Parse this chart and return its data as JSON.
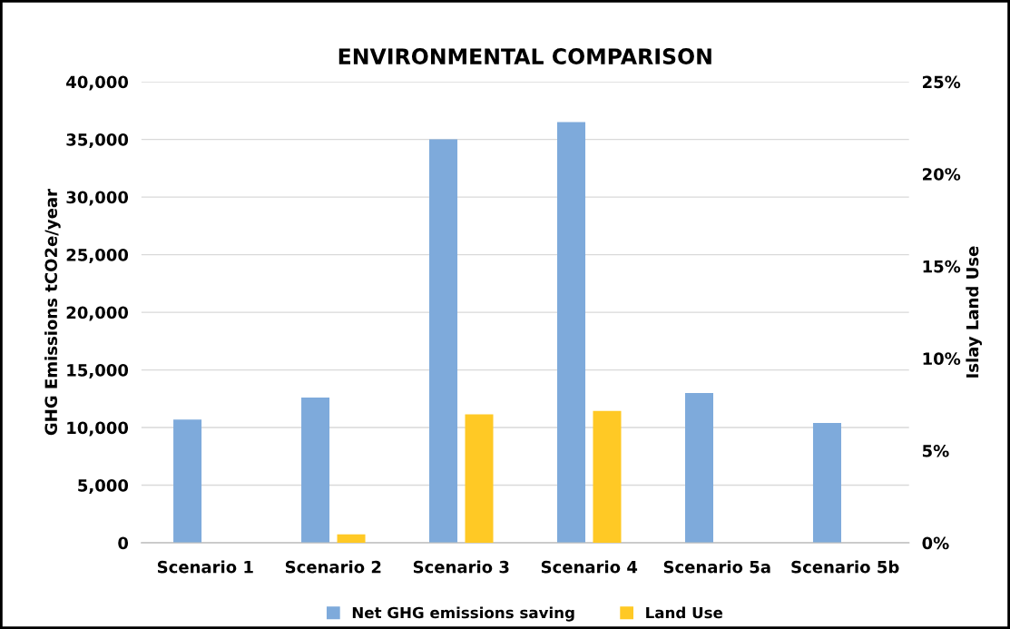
{
  "chart_data": {
    "type": "bar",
    "title": "ENVIRONMENTAL COMPARISON",
    "ylabel": "GHG Emissions tCO2e/year",
    "y2label": "Islay Land Use",
    "categories": [
      "Scenario 1",
      "Scenario 2",
      "Scenario 3",
      "Scenario 4",
      "Scenario 5a",
      "Scenario 5b"
    ],
    "series": [
      {
        "name": "Net GHG emissions saving",
        "color": "#7eaadb",
        "values": [
          10700,
          12600,
          35000,
          36500,
          13000,
          10400
        ]
      },
      {
        "name": "Land Use",
        "color": "#ffc925",
        "axis": "y2",
        "values": [
          0,
          0.46,
          6.97,
          7.15,
          0,
          0
        ]
      }
    ],
    "ylim": [
      0,
      40000
    ],
    "yticks": [
      {
        "value": 0,
        "label": "0"
      },
      {
        "value": 5000,
        "label": "5,000"
      },
      {
        "value": 10000,
        "label": "10,000"
      },
      {
        "value": 15000,
        "label": "15,000"
      },
      {
        "value": 20000,
        "label": "20,000"
      },
      {
        "value": 25000,
        "label": "25,000"
      },
      {
        "value": 30000,
        "label": "30,000"
      },
      {
        "value": 35000,
        "label": "35,000"
      },
      {
        "value": 40000,
        "label": "40,000"
      }
    ],
    "y2lim": [
      0,
      25
    ],
    "y2ticks": [
      {
        "value": 0,
        "label": "0%"
      },
      {
        "value": 5,
        "label": "5%"
      },
      {
        "value": 10,
        "label": "10%"
      },
      {
        "value": 15,
        "label": "15%"
      },
      {
        "value": 20,
        "label": "20%"
      },
      {
        "value": 25,
        "label": "25%"
      }
    ],
    "grid": "y",
    "legend": "bottom"
  }
}
